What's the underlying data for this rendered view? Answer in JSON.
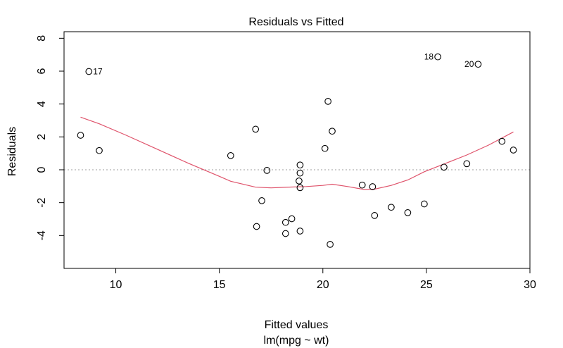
{
  "chart_data": {
    "type": "scatter",
    "title": "Residuals vs Fitted",
    "xlabel": "Fitted values",
    "subtitle": "lm(mpg ~ wt)",
    "ylabel": "Residuals",
    "xlim": [
      7.5,
      30.0
    ],
    "ylim": [
      -6.0,
      8.4
    ],
    "xticks": [
      10,
      15,
      20,
      25,
      30
    ],
    "yticks": [
      -4,
      -2,
      0,
      2,
      4,
      6,
      8
    ],
    "reference_line": 0,
    "points": [
      {
        "x": 8.3,
        "y": 2.1
      },
      {
        "x": 8.7,
        "y": 5.98,
        "label": "17"
      },
      {
        "x": 9.2,
        "y": 1.17
      },
      {
        "x": 15.55,
        "y": 0.86
      },
      {
        "x": 16.75,
        "y": 2.47
      },
      {
        "x": 16.8,
        "y": -3.45
      },
      {
        "x": 17.05,
        "y": -1.88
      },
      {
        "x": 17.3,
        "y": -0.04
      },
      {
        "x": 18.2,
        "y": -3.88
      },
      {
        "x": 18.2,
        "y": -3.2
      },
      {
        "x": 18.5,
        "y": -2.98
      },
      {
        "x": 18.85,
        "y": -0.68
      },
      {
        "x": 18.9,
        "y": 0.29
      },
      {
        "x": 18.9,
        "y": -0.2
      },
      {
        "x": 18.9,
        "y": -1.09
      },
      {
        "x": 18.9,
        "y": -3.73
      },
      {
        "x": 20.1,
        "y": 1.3
      },
      {
        "x": 20.25,
        "y": 4.16
      },
      {
        "x": 20.35,
        "y": -4.54
      },
      {
        "x": 20.45,
        "y": 2.35
      },
      {
        "x": 21.9,
        "y": -0.93
      },
      {
        "x": 22.4,
        "y": -1.03
      },
      {
        "x": 22.5,
        "y": -2.78
      },
      {
        "x": 23.3,
        "y": -2.28
      },
      {
        "x": 24.1,
        "y": -2.61
      },
      {
        "x": 24.9,
        "y": -2.08
      },
      {
        "x": 25.55,
        "y": 6.87,
        "label": "18"
      },
      {
        "x": 25.85,
        "y": 0.16
      },
      {
        "x": 26.95,
        "y": 0.37
      },
      {
        "x": 27.5,
        "y": 6.42,
        "label": "20"
      },
      {
        "x": 28.65,
        "y": 1.73
      },
      {
        "x": 29.2,
        "y": 1.2
      }
    ],
    "smooth_line": {
      "color": "#df536b",
      "x": [
        8.3,
        9.2,
        10.5,
        12.0,
        13.5,
        15.0,
        15.55,
        16.75,
        17.5,
        18.5,
        19.2,
        20.0,
        20.45,
        21.2,
        22.0,
        22.5,
        23.3,
        24.1,
        24.9,
        25.85,
        26.95,
        28.0,
        29.2
      ],
      "y": [
        3.2,
        2.8,
        2.1,
        1.25,
        0.4,
        -0.4,
        -0.7,
        -1.06,
        -1.1,
        -1.05,
        -1.02,
        -0.95,
        -0.88,
        -1.02,
        -1.2,
        -1.18,
        -0.95,
        -0.62,
        -0.12,
        0.35,
        0.9,
        1.5,
        2.3
      ]
    }
  }
}
